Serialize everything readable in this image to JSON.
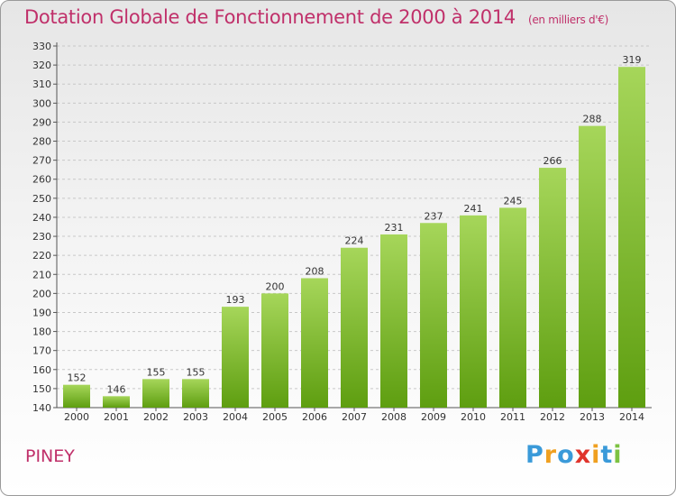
{
  "header": {
    "title": "Dotation Globale de Fonctionnement de 2000 à 2014",
    "subtitle": "(en milliers d'€)"
  },
  "footer": {
    "commune": "PINEY",
    "logo": [
      "P",
      "r",
      "o",
      "x",
      "i",
      "t",
      "i"
    ],
    "logo_colors": [
      "#3a9ad9",
      "#f0a020",
      "#3a9ad9",
      "#e0342c",
      "#f0a020",
      "#3a9ad9",
      "#7cc242"
    ]
  },
  "colors": {
    "bar_light": "#a6d65a",
    "bar_dark": "#5e9e10",
    "grid": "#c8c8c8",
    "title": "#c0306a"
  },
  "chart_data": {
    "type": "bar",
    "categories": [
      "2000",
      "2001",
      "2002",
      "2003",
      "2004",
      "2005",
      "2006",
      "2007",
      "2008",
      "2009",
      "2010",
      "2011",
      "2012",
      "2013",
      "2014"
    ],
    "values": [
      152,
      146,
      155,
      155,
      193,
      200,
      208,
      224,
      231,
      237,
      241,
      245,
      266,
      288,
      319
    ],
    "title": "Dotation Globale de Fonctionnement de 2000 à 2014",
    "subtitle": "(en milliers d'€)",
    "xlabel": "",
    "ylabel": "",
    "ylim": [
      140,
      330
    ],
    "ytick_step": 10,
    "grid": true,
    "data_labels": true
  }
}
